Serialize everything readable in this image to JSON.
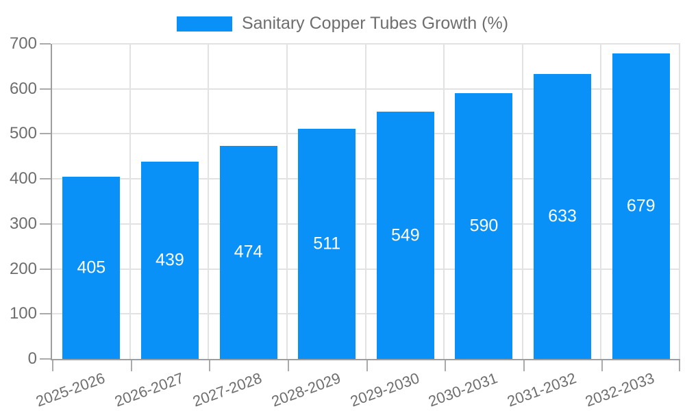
{
  "legend": {
    "label": "Sanitary Copper Tubes Growth (%)"
  },
  "chart_data": {
    "type": "bar",
    "title": "",
    "xlabel": "",
    "ylabel": "",
    "categories": [
      "2025-2026",
      "2026-2027",
      "2027-2028",
      "2028-2029",
      "2029-2030",
      "2030-2031",
      "2031-2032",
      "2032-2033"
    ],
    "values": [
      405,
      439,
      474,
      511,
      549,
      590,
      633,
      679
    ],
    "series_name": "Sanitary Copper Tubes Growth (%)",
    "ylim": [
      0,
      700
    ],
    "ytick_step": 100,
    "yticks": [
      0,
      100,
      200,
      300,
      400,
      500,
      600,
      700
    ],
    "grid": true,
    "legend_position": "top-center",
    "value_labels": "centered-inside-bars",
    "xlabel_rotation_deg": -20,
    "colors": {
      "bar": "#0a91f8",
      "value_label": "#ffffff",
      "axis": "#9e9e9e",
      "grid": "#e2e2e2",
      "tick": "#aaaaaa",
      "text": "#6e6e6e"
    }
  }
}
